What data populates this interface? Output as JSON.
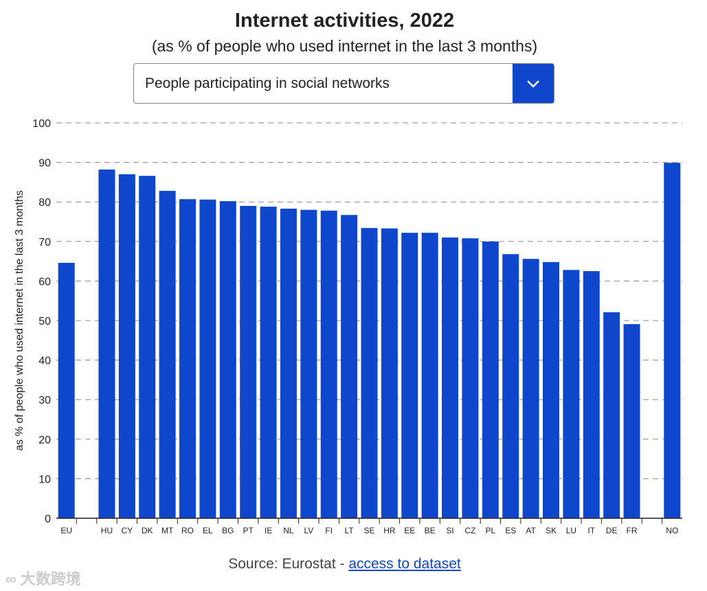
{
  "chart_data": {
    "type": "bar",
    "title": "Internet activities, 2022",
    "subtitle": "(as % of people who used internet in the last 3 months)",
    "ylabel": "as % of people who used internet in the last 3 months",
    "xlabel": "",
    "ylim": [
      0,
      100
    ],
    "yticks": [
      0,
      10,
      20,
      30,
      40,
      50,
      60,
      70,
      80,
      90,
      100
    ],
    "grid": true,
    "categories": [
      "EU",
      "",
      "HU",
      "CY",
      "DK",
      "MT",
      "RO",
      "EL",
      "BG",
      "PT",
      "IE",
      "NL",
      "LV",
      "FI",
      "LT",
      "SE",
      "HR",
      "EE",
      "BE",
      "SI",
      "CZ",
      "PL",
      "ES",
      "AT",
      "SK",
      "LU",
      "IT",
      "DE",
      "FR",
      "",
      "NO"
    ],
    "values": [
      64.6,
      null,
      88.2,
      87.0,
      86.6,
      82.8,
      80.7,
      80.6,
      80.2,
      79.0,
      78.8,
      78.3,
      78.0,
      77.8,
      76.7,
      73.4,
      73.3,
      72.2,
      72.2,
      71.0,
      70.8,
      70.0,
      66.8,
      65.6,
      64.8,
      62.8,
      62.5,
      52.1,
      49.1,
      null,
      89.9
    ],
    "bar_color": "#0e47cb"
  },
  "dropdown": {
    "selected": "People participating in social networks",
    "icon": "chevron-down-icon"
  },
  "source": {
    "prefix": "Source: Eurostat - ",
    "link": "access to dataset"
  },
  "watermark": "大数跨境"
}
